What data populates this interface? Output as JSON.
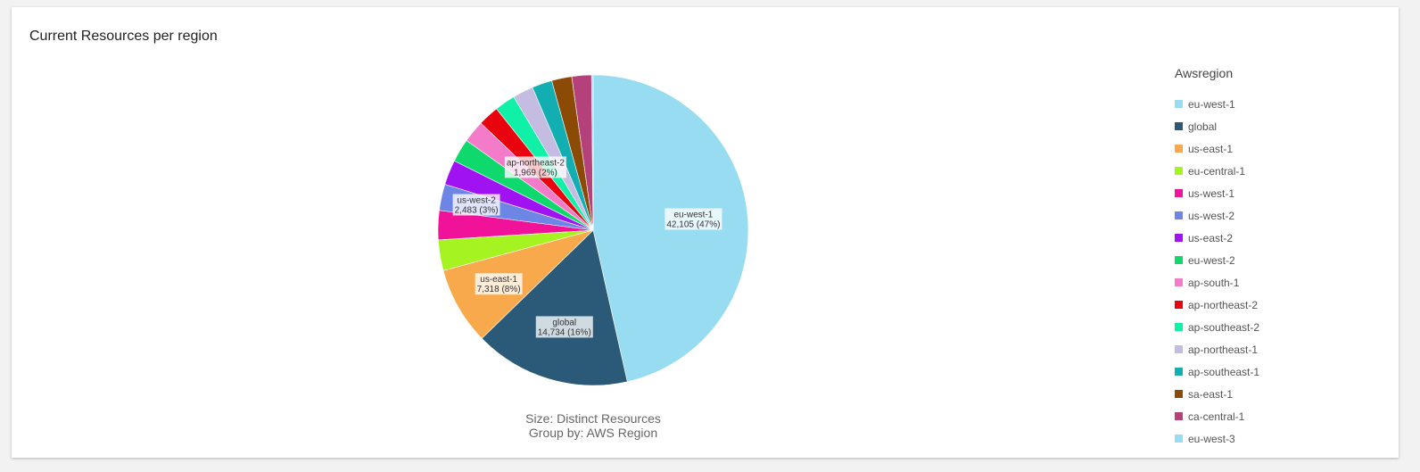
{
  "panel": {
    "title": "Current Resources per region"
  },
  "chart_data": {
    "type": "pie",
    "title": "Current Resources per region",
    "legend_title": "Awsregion",
    "legend_position": "right",
    "caption_lines": [
      "Size: Distinct Resources",
      "Group by: AWS Region"
    ],
    "series": [
      {
        "name": "eu-west-1",
        "value": 42105,
        "percent": 47,
        "color": "#98dcf1",
        "label": [
          "eu-west-1",
          "42,105 (47%)"
        ]
      },
      {
        "name": "global",
        "value": 14734,
        "percent": 16,
        "color": "#2b5a78",
        "label": [
          "global",
          "14,734 (16%)"
        ]
      },
      {
        "name": "us-east-1",
        "value": 7318,
        "percent": 8,
        "color": "#f7a94b",
        "label": [
          "us-east-1",
          "7,318 (8%)"
        ]
      },
      {
        "name": "eu-central-1",
        "value": 2900,
        "percent": 3,
        "color": "#a5f321",
        "label": null
      },
      {
        "name": "us-west-1",
        "value": 2750,
        "percent": 3,
        "color": "#f0139a",
        "label": null
      },
      {
        "name": "us-west-2",
        "value": 2483,
        "percent": 3,
        "color": "#6d86e6",
        "label": [
          "us-west-2",
          "2,483 (3%)"
        ]
      },
      {
        "name": "us-east-2",
        "value": 2350,
        "percent": 3,
        "color": "#a112f2",
        "label": null
      },
      {
        "name": "eu-west-2",
        "value": 2200,
        "percent": 2,
        "color": "#0fd96d",
        "label": null
      },
      {
        "name": "ap-south-1",
        "value": 2100,
        "percent": 2,
        "color": "#f47bc9",
        "label": null
      },
      {
        "name": "ap-northeast-2",
        "value": 1969,
        "percent": 2,
        "color": "#e8030f",
        "label": [
          "ap-northeast-2",
          "1,969 (2%)"
        ]
      },
      {
        "name": "ap-southeast-2",
        "value": 1950,
        "percent": 2,
        "color": "#11f0a7",
        "label": null
      },
      {
        "name": "ap-northeast-1",
        "value": 1950,
        "percent": 2,
        "color": "#c4bde1",
        "label": null
      },
      {
        "name": "ap-southeast-1",
        "value": 1900,
        "percent": 2,
        "color": "#12aeb2",
        "label": null
      },
      {
        "name": "sa-east-1",
        "value": 1900,
        "percent": 2,
        "color": "#8b4a06",
        "label": null
      },
      {
        "name": "ca-central-1",
        "value": 1850,
        "percent": 2,
        "color": "#b5417a",
        "label": null
      },
      {
        "name": "eu-west-3",
        "value": 150,
        "percent": 0,
        "color": "#98dcf1",
        "label": null
      }
    ]
  }
}
